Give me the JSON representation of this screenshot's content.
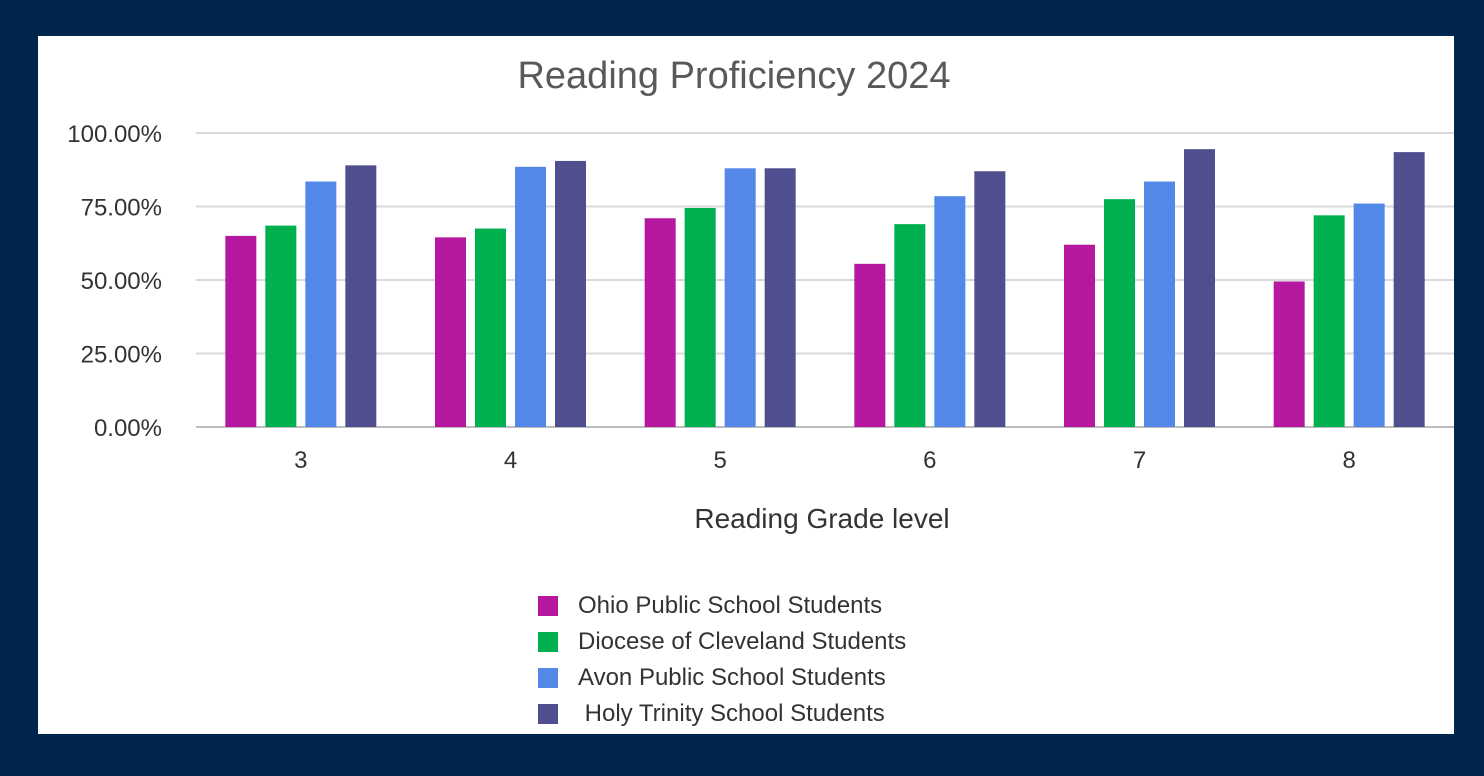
{
  "chart_data": {
    "type": "bar",
    "title": "Reading Proficiency 2024",
    "xlabel": "Reading Grade level",
    "ylabel": "",
    "ylim": [
      0,
      1
    ],
    "y_ticks": [
      "0.00%",
      "25.00%",
      "50.00%",
      "75.00%",
      "100.00%"
    ],
    "y_tick_values": [
      0,
      0.25,
      0.5,
      0.75,
      1.0
    ],
    "grid": true,
    "legend_position": "bottom",
    "categories": [
      "3",
      "4",
      "5",
      "6",
      "7",
      "8"
    ],
    "series": [
      {
        "name": "Ohio Public School Students",
        "color": "#b5189e",
        "values": [
          0.65,
          0.645,
          0.71,
          0.555,
          0.62,
          0.495
        ]
      },
      {
        "name": "Diocese of Cleveland Students",
        "color": "#00b04f",
        "values": [
          0.685,
          0.675,
          0.745,
          0.69,
          0.775,
          0.72
        ]
      },
      {
        "name": "Avon Public School Students",
        "color": "#5488e8",
        "values": [
          0.835,
          0.885,
          0.88,
          0.785,
          0.835,
          0.76
        ]
      },
      {
        "name": " Holy Trinity School Students",
        "color": "#4f4f8f",
        "values": [
          0.89,
          0.905,
          0.88,
          0.87,
          0.945,
          0.935
        ]
      }
    ]
  }
}
